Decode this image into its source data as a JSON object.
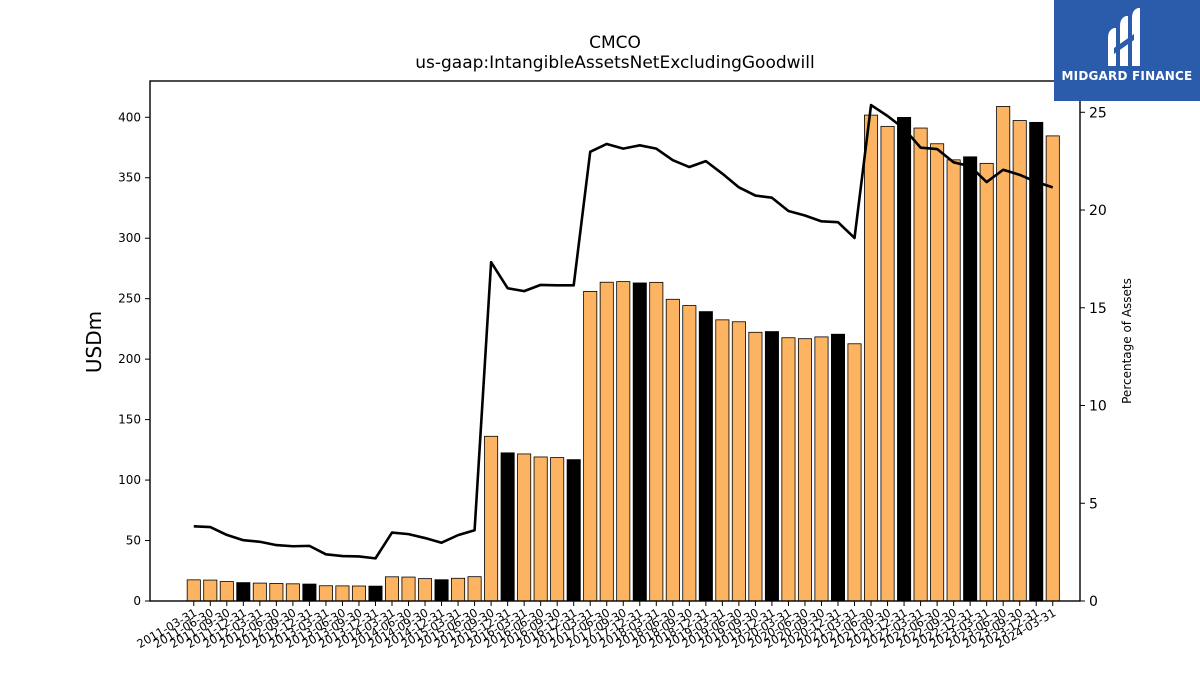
{
  "chart_data": {
    "type": "bar",
    "title": "CMCO",
    "subtitle": "us-gaap:IntangibleAssetsNetExcludingGoodwill",
    "ylabel": "USDm",
    "ylabel_right": "Percentage of Assets",
    "ylim": [
      0,
      430
    ],
    "ylim_right": [
      0,
      26.6
    ],
    "yticks": [
      0,
      50,
      100,
      150,
      200,
      250,
      300,
      350,
      400
    ],
    "yticks_right": [
      0,
      5,
      10,
      15,
      20,
      25
    ],
    "bar_color": "#fdb462",
    "highlight_color": "#000000",
    "line_color": "#000000",
    "categories": [
      "2011-03-31",
      "2011-06-30",
      "2011-09-30",
      "2011-12-31",
      "2012-03-31",
      "2012-06-30",
      "2012-09-30",
      "2012-12-31",
      "2013-03-31",
      "2013-06-30",
      "2013-09-30",
      "2013-12-31",
      "2014-03-31",
      "2014-06-30",
      "2014-09-30",
      "2014-12-31",
      "2015-03-31",
      "2015-06-30",
      "2015-09-30",
      "2015-12-31",
      "2016-03-31",
      "2016-06-30",
      "2016-09-30",
      "2016-12-31",
      "2017-03-31",
      "2017-06-30",
      "2017-09-30",
      "2017-12-31",
      "2018-03-31",
      "2018-06-30",
      "2018-09-30",
      "2018-12-31",
      "2019-03-31",
      "2019-06-30",
      "2019-09-30",
      "2019-12-31",
      "2020-03-31",
      "2020-06-30",
      "2020-09-30",
      "2020-12-31",
      "2021-03-31",
      "2021-06-30",
      "2021-09-30",
      "2021-12-31",
      "2022-03-31",
      "2022-06-30",
      "2022-09-30",
      "2022-12-31",
      "2023-03-31",
      "2023-06-30",
      "2023-09-30",
      "2023-12-31",
      "2024-03-31"
    ],
    "xtick_labels": [
      "2011-03-31",
      "2011-06-30",
      "2011-09-30",
      "2011-12-31",
      "2012-03-31",
      "2012-06-30",
      "2012-09-30",
      "2012-12-31",
      "2013-03-31",
      "2013-06-30",
      "2013-09-30",
      "2013-12-31",
      "2014-03-31",
      "2014-06-30",
      "2014-09-30",
      "2014-12-31",
      "2015-03-31",
      "2015-06-30",
      "2015-09-30",
      "2015-12-31",
      "2016-03-31",
      "2016-06-30",
      "2016-09-30",
      "2016-12-31",
      "2017-03-31",
      "2017-06-30",
      "2017-09-30",
      "2017-12-31",
      "2018-03-31",
      "2018-06-30",
      "2018-09-30",
      "2018-12-31",
      "2019-03-31",
      "2019-06-30",
      "2019-09-30",
      "2019-12-31",
      "2020-03-31",
      "2020-06-30",
      "2020-09-30",
      "2020-12-31",
      "2021-03-31",
      "2021-06-30",
      "2021-09-30",
      "2021-12-31",
      "2022-03-31",
      "2022-06-30",
      "2022-09-30",
      "2022-12-31",
      "2023-03-31",
      "2023-06-30",
      "2023-09-30",
      "2023-12-31",
      "2024-03-31"
    ],
    "series": [
      {
        "type": "bar",
        "values": [
          17.5,
          17.3,
          16.1,
          15.2,
          14.8,
          14.5,
          14.2,
          14.0,
          12.6,
          12.5,
          12.4,
          12.3,
          20.0,
          19.8,
          18.5,
          17.6,
          18.8,
          20.1,
          136.2,
          122.5,
          121.6,
          119.1,
          118.6,
          116.9,
          256.0,
          263.6,
          264.1,
          263.0,
          263.5,
          249.5,
          244.3,
          239.3,
          232.5,
          230.9,
          222.2,
          222.8,
          217.7,
          216.9,
          218.4,
          220.6,
          212.7,
          401.8,
          392.5,
          399.9,
          391.1,
          378.1,
          364.8,
          367.3,
          361.9,
          409.0,
          397.3,
          395.8,
          384.6
        ],
        "highlighted": [
          false,
          false,
          false,
          true,
          false,
          false,
          false,
          true,
          false,
          false,
          false,
          true,
          false,
          false,
          false,
          true,
          false,
          false,
          false,
          true,
          false,
          false,
          false,
          true,
          false,
          false,
          false,
          true,
          false,
          false,
          false,
          true,
          false,
          false,
          false,
          true,
          false,
          false,
          false,
          true,
          false,
          false,
          false,
          true,
          false,
          false,
          false,
          true,
          false,
          false,
          false,
          true,
          false
        ]
      },
      {
        "type": "line",
        "axis": "right",
        "values": [
          3.82,
          3.78,
          3.38,
          3.11,
          3.03,
          2.86,
          2.8,
          2.82,
          2.39,
          2.3,
          2.28,
          2.18,
          3.5,
          3.42,
          3.22,
          2.98,
          3.37,
          3.62,
          17.33,
          16.0,
          15.85,
          16.17,
          16.15,
          16.15,
          22.98,
          23.38,
          23.14,
          23.31,
          23.14,
          22.55,
          22.2,
          22.5,
          21.86,
          21.16,
          20.74,
          20.63,
          19.95,
          19.72,
          19.42,
          19.38,
          18.57,
          25.37,
          24.81,
          24.16,
          23.19,
          23.12,
          22.44,
          22.24,
          21.43,
          22.06,
          21.8,
          21.44,
          21.16
        ]
      }
    ]
  },
  "logo": {
    "text": "MIDGARD FINANCE",
    "bg_color": "#2b5bab"
  }
}
